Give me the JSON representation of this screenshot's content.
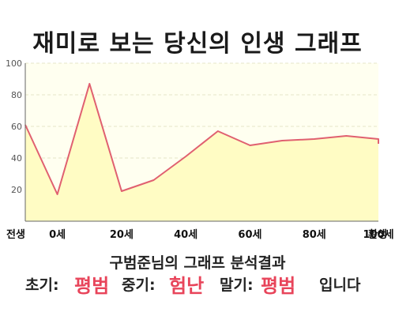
{
  "title": "재미로 보는 당신의 인생 그래프",
  "subtitle": "구범준님의 그래프 분석결과",
  "result": {
    "early_label": "초기:",
    "early_value": "평범",
    "middle_label": "중기:",
    "middle_value": "험난",
    "late_label": "말기:",
    "late_value": "평범",
    "suffix": "입니다"
  },
  "colors": {
    "line": "#e06070",
    "fill": "#fffcc4",
    "plot_bg": "#fffff0",
    "grid": "#e4e4c8",
    "highlight": "#e8445a"
  },
  "chart_data": {
    "type": "area",
    "title": "재미로 보는 당신의 인생 그래프",
    "xlabel": "",
    "ylabel": "",
    "x_range": [
      -10,
      100
    ],
    "ylim": [
      0,
      100
    ],
    "y_ticks": [
      20,
      40,
      60,
      80,
      100
    ],
    "x_ticks": [
      {
        "label": "전생",
        "x": -10
      },
      {
        "label": "0세",
        "x": 0
      },
      {
        "label": "20세",
        "x": 20
      },
      {
        "label": "40세",
        "x": 40
      },
      {
        "label": "60세",
        "x": 60
      },
      {
        "label": "80세",
        "x": 80
      },
      {
        "label": "100세",
        "x": 100
      },
      {
        "label": "환생",
        "x": 110
      }
    ],
    "grid": true,
    "series": [
      {
        "x": [
          -10,
          0,
          10,
          20,
          30,
          40,
          50,
          60,
          70,
          80,
          90,
          100,
          110
        ],
        "values": [
          61,
          17,
          87,
          19,
          26,
          41,
          57,
          48,
          51,
          52,
          54,
          52,
          49
        ]
      }
    ]
  }
}
